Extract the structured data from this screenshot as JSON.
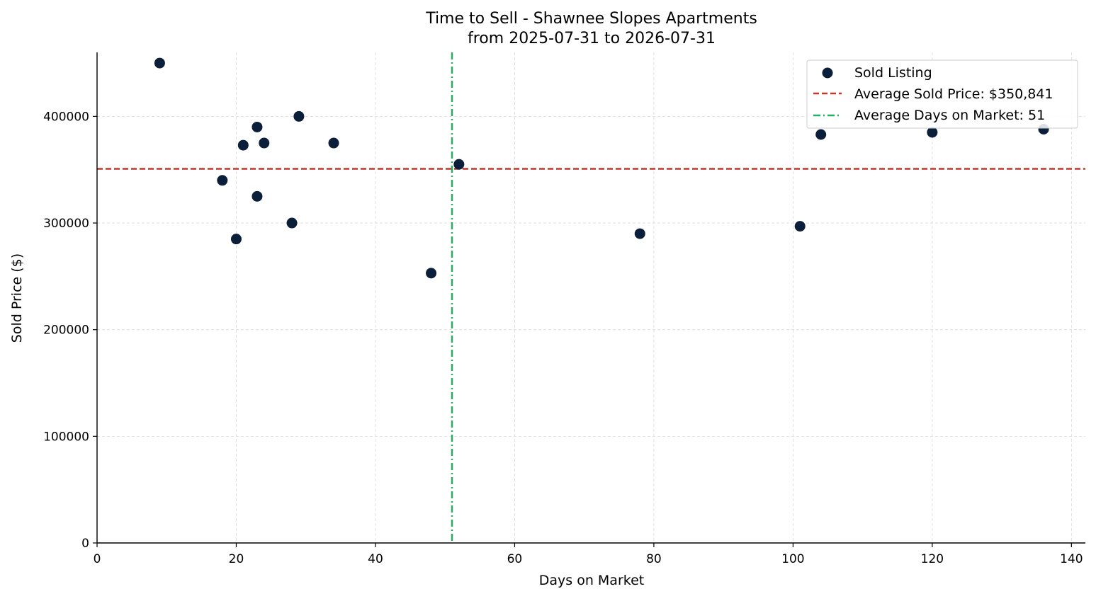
{
  "chart_data": {
    "type": "scatter",
    "title": "Time to Sell - Shawnee Slopes Apartments",
    "subtitle": "from 2025-07-31 to 2026-07-31",
    "xlabel": "Days on Market",
    "ylabel": "Sold Price ($)",
    "xlim": [
      0,
      142
    ],
    "ylim": [
      0,
      460000
    ],
    "x_ticks": [
      0,
      20,
      40,
      60,
      80,
      100,
      120,
      140
    ],
    "y_ticks": [
      0,
      100000,
      200000,
      300000,
      400000
    ],
    "x_tick_labels": [
      "0",
      "20",
      "40",
      "60",
      "80",
      "100",
      "120",
      "140"
    ],
    "y_tick_labels": [
      "0",
      "100000",
      "200000",
      "300000",
      "400000"
    ],
    "grid": true,
    "legend_position": "top-right",
    "series": [
      {
        "name": "Sold Listing",
        "color": "#0b1f3a",
        "points": [
          {
            "x": 9,
            "y": 450000
          },
          {
            "x": 18,
            "y": 340000
          },
          {
            "x": 20,
            "y": 285000
          },
          {
            "x": 21,
            "y": 373000
          },
          {
            "x": 23,
            "y": 390000
          },
          {
            "x": 23,
            "y": 325000
          },
          {
            "x": 24,
            "y": 375000
          },
          {
            "x": 28,
            "y": 300000
          },
          {
            "x": 29,
            "y": 400000
          },
          {
            "x": 34,
            "y": 375000
          },
          {
            "x": 48,
            "y": 253000
          },
          {
            "x": 52,
            "y": 355000
          },
          {
            "x": 78,
            "y": 290000
          },
          {
            "x": 101,
            "y": 297000
          },
          {
            "x": 104,
            "y": 383000
          },
          {
            "x": 120,
            "y": 385000
          },
          {
            "x": 136,
            "y": 388000
          }
        ]
      }
    ],
    "reference_lines": [
      {
        "name": "Average Sold Price: $350,841",
        "orientation": "horizontal",
        "value": 350841,
        "color": "#c0392b",
        "style": "dashed"
      },
      {
        "name": "Average Days on Market: 51",
        "orientation": "vertical",
        "value": 51,
        "color": "#27ae60",
        "style": "dashdot"
      }
    ]
  }
}
